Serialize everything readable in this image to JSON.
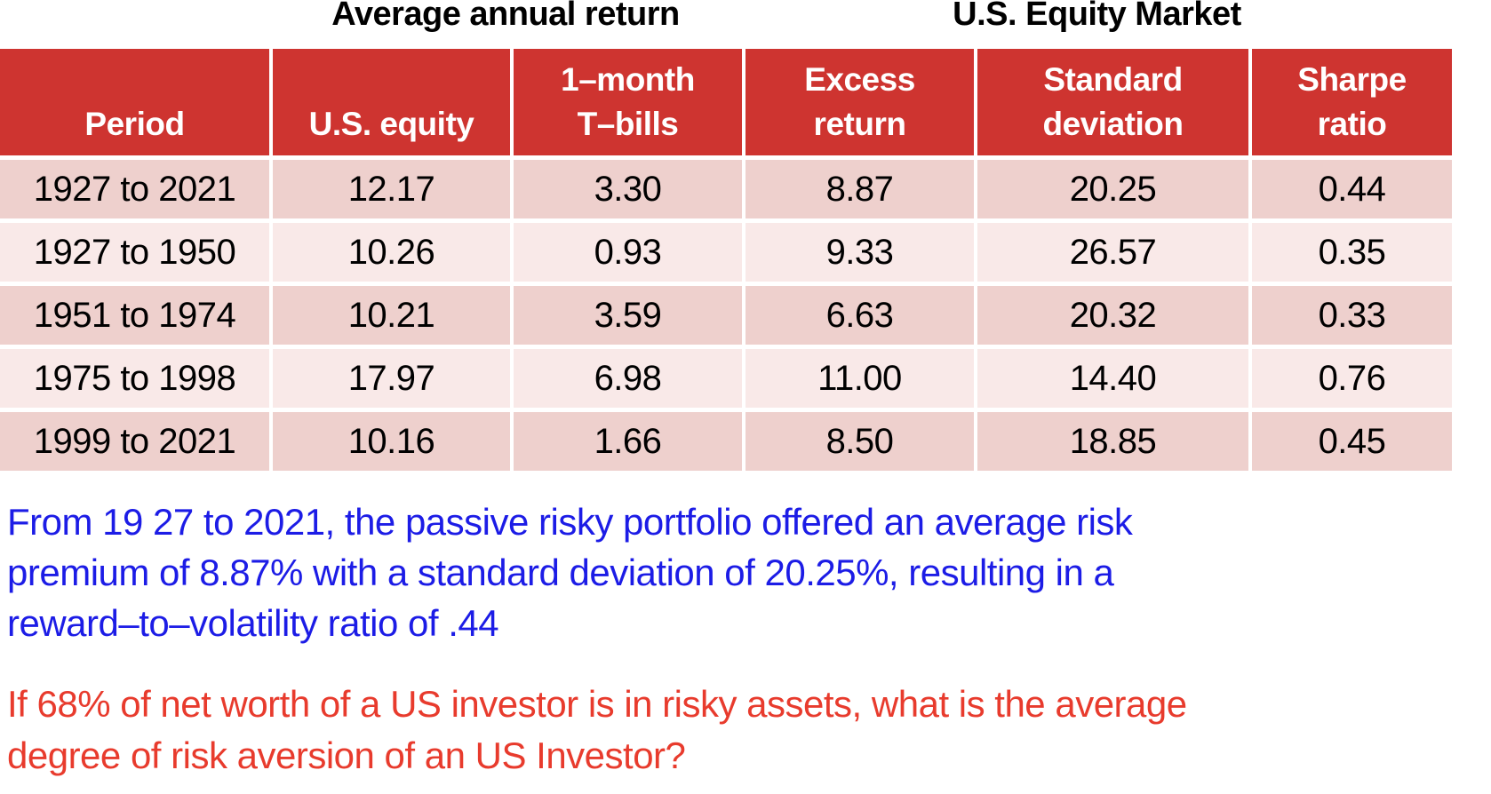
{
  "chart_data": {
    "type": "table",
    "group_titles": [
      "Average annual return",
      "U.S. Equity Market"
    ],
    "group_title_spans": [
      {
        "title": "Average annual return",
        "columns": [
          "U.S. equity",
          "1–month T–bills"
        ]
      },
      {
        "title": "U.S. Equity Market",
        "columns": [
          "Excess return",
          "Standard deviation",
          "Sharpe ratio"
        ]
      }
    ],
    "columns": [
      "Period",
      "U.S. equity",
      "1–month T–bills",
      "Excess return",
      "Standard deviation",
      "Sharpe ratio"
    ],
    "header_lines": [
      [
        "Period"
      ],
      [
        "U.S. equity"
      ],
      [
        "1–month",
        "T–bills"
      ],
      [
        "Excess",
        "return"
      ],
      [
        "Standard",
        "deviation"
      ],
      [
        "Sharpe",
        "ratio"
      ]
    ],
    "rows": [
      [
        "1927 to 2021",
        "12.17",
        "3.30",
        "8.87",
        "20.25",
        "0.44"
      ],
      [
        "1927 to 1950",
        "10.26",
        "0.93",
        "9.33",
        "26.57",
        "0.35"
      ],
      [
        "1951 to 1974",
        "10.21",
        "3.59",
        "6.63",
        "20.32",
        "0.33"
      ],
      [
        "1975 to 1998",
        "17.97",
        "6.98",
        "11.00",
        "14.40",
        "0.76"
      ],
      [
        "1999 to 2021",
        "10.16",
        "1.66",
        "8.50",
        "18.85",
        "0.45"
      ]
    ]
  },
  "commentary": {
    "lines": [
      "From 19 27 to 2021, the passive risky portfolio offered an average risk",
      "premium of 8.87% with a standard deviation of 20.25%, resulting in a",
      "reward–to–volatility ratio of .44"
    ]
  },
  "question": {
    "lines": [
      "If 68% of net worth of a US investor is in risky assets, what is the average",
      "degree of risk aversion of an US Investor?"
    ]
  },
  "colors": {
    "header_bg": "#ce3430",
    "row_dark": "#eed0cd",
    "row_light": "#f9e9e8",
    "commentary_text": "#1c1ce6",
    "question_text": "#e83b2d"
  }
}
